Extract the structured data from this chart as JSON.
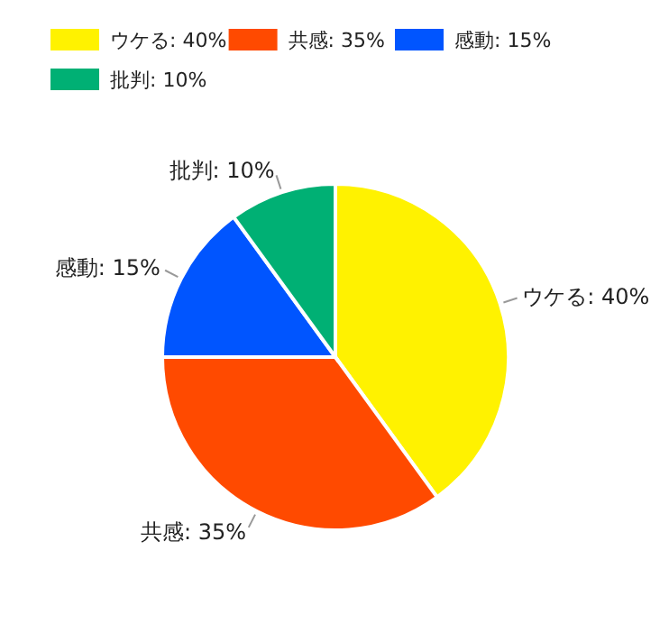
{
  "chart_data": {
    "type": "pie",
    "categories": [
      "ウケる: 40%",
      "共感: 35%",
      "感動: 15%",
      "批判: 10%"
    ],
    "values": [
      40,
      35,
      15,
      10
    ],
    "colors": [
      "#fff200",
      "#ff4a00",
      "#0055ff",
      "#00b074"
    ],
    "legend": "top"
  }
}
